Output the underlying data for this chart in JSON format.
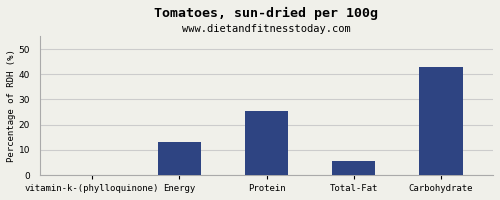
{
  "title": "Tomatoes, sun-dried per 100g",
  "subtitle": "www.dietandfitnesstoday.com",
  "categories": [
    "vitamin-k-(phylloquinone)",
    "Energy",
    "Protein",
    "Total-Fat",
    "Carbohydrate"
  ],
  "values": [
    0,
    13,
    25.5,
    5.5,
    43
  ],
  "bar_color": "#2e4482",
  "ylabel": "Percentage of RDH (%)",
  "ylim": [
    0,
    55
  ],
  "yticks": [
    0,
    10,
    20,
    30,
    40,
    50
  ],
  "background_color": "#f0f0ea",
  "grid_color": "#cccccc",
  "title_fontsize": 9.5,
  "subtitle_fontsize": 7.5,
  "label_fontsize": 6.5,
  "ylabel_fontsize": 6.5
}
